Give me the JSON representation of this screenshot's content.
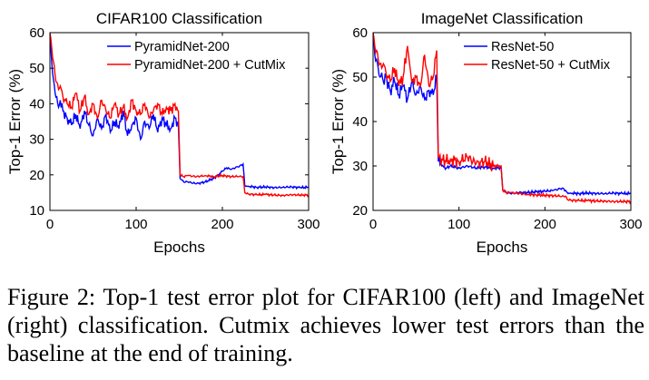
{
  "chart_data": [
    {
      "type": "line",
      "title": "CIFAR100 Classification",
      "xlabel": "Epochs",
      "ylabel": "Top-1 Error (%)",
      "xlim": [
        0,
        300
      ],
      "ylim": [
        10,
        60
      ],
      "xticks": [
        0,
        100,
        200,
        300
      ],
      "yticks": [
        10,
        20,
        30,
        40,
        50,
        60
      ],
      "legend_position": "top-right",
      "series": [
        {
          "name": "PyramidNet-200",
          "color": "#0000ff",
          "x": [
            0,
            2,
            4,
            6,
            8,
            10,
            12,
            15,
            20,
            25,
            30,
            35,
            40,
            45,
            50,
            55,
            60,
            65,
            70,
            75,
            80,
            85,
            90,
            95,
            100,
            105,
            110,
            115,
            120,
            125,
            130,
            135,
            140,
            145,
            149,
            151,
            155,
            160,
            170,
            180,
            190,
            195,
            200,
            205,
            210,
            215,
            220,
            224,
            226,
            230,
            240,
            250,
            260,
            270,
            280,
            290,
            300
          ],
          "y": [
            58,
            52,
            47,
            43,
            42,
            39,
            41,
            38,
            36,
            34,
            37,
            33,
            38,
            34,
            31,
            36,
            33,
            37,
            32,
            35,
            33,
            38,
            31,
            34,
            36,
            30,
            35,
            33,
            37,
            32,
            36,
            34,
            33,
            36,
            34,
            19,
            18,
            18,
            17.5,
            18,
            19,
            20,
            21,
            22,
            21.5,
            22,
            22.5,
            23,
            17,
            16.8,
            16.5,
            16.6,
            16.4,
            16.5,
            16.6,
            16.4,
            16.5
          ]
        },
        {
          "name": "PyramidNet-200 + CutMix",
          "color": "#ff0000",
          "x": [
            0,
            2,
            4,
            6,
            8,
            10,
            12,
            15,
            20,
            25,
            30,
            35,
            40,
            45,
            50,
            55,
            60,
            65,
            70,
            75,
            80,
            85,
            90,
            95,
            100,
            105,
            110,
            115,
            120,
            125,
            130,
            135,
            140,
            145,
            149,
            151,
            155,
            160,
            170,
            180,
            190,
            200,
            210,
            220,
            224,
            226,
            230,
            240,
            250,
            260,
            270,
            280,
            290,
            300
          ],
          "y": [
            60,
            56,
            52,
            48,
            46,
            44,
            45,
            42,
            40,
            39,
            43,
            38,
            42,
            37,
            40,
            36,
            41,
            38,
            36,
            40,
            37,
            39,
            36,
            41,
            38,
            37,
            40,
            36,
            38,
            40,
            37,
            39,
            38,
            40,
            38,
            20,
            19.5,
            19.8,
            19.5,
            19.8,
            19.5,
            19.8,
            19.5,
            19.6,
            19.5,
            15,
            14.6,
            14.4,
            14.5,
            14.3,
            14.2,
            14.4,
            14.3,
            14.3
          ]
        }
      ]
    },
    {
      "type": "line",
      "title": "ImageNet Classification",
      "xlabel": "Epochs",
      "ylabel": "Top-1 Error (%)",
      "xlim": [
        0,
        300
      ],
      "ylim": [
        20,
        60
      ],
      "xticks": [
        0,
        100,
        200,
        300
      ],
      "yticks": [
        20,
        30,
        40,
        50,
        60
      ],
      "legend_position": "top-right",
      "series": [
        {
          "name": "ResNet-50",
          "color": "#0000ff",
          "x": [
            0,
            2,
            4,
            6,
            8,
            10,
            12,
            15,
            20,
            25,
            30,
            35,
            40,
            45,
            50,
            55,
            60,
            65,
            70,
            74,
            76,
            80,
            85,
            90,
            100,
            110,
            120,
            130,
            140,
            149,
            151,
            155,
            160,
            170,
            180,
            190,
            200,
            210,
            220,
            224,
            226,
            230,
            240,
            250,
            260,
            270,
            280,
            290,
            300
          ],
          "y": [
            60,
            55,
            54,
            52,
            50,
            51,
            49,
            50,
            47,
            49,
            46,
            48,
            45,
            49,
            46,
            48,
            45,
            47,
            46,
            50,
            31,
            30,
            29.5,
            30,
            29.5,
            30,
            29.5,
            29.8,
            29.5,
            29.6,
            24.5,
            24,
            23.8,
            24,
            24,
            24.2,
            24.3,
            24.5,
            25,
            24.5,
            24,
            23.9,
            23.8,
            23.9,
            23.8,
            23.8,
            23.9,
            23.8,
            23.8
          ]
        },
        {
          "name": "ResNet-50 + CutMix",
          "color": "#ff0000",
          "x": [
            0,
            2,
            4,
            6,
            8,
            10,
            12,
            15,
            20,
            25,
            30,
            35,
            40,
            45,
            50,
            55,
            60,
            65,
            70,
            74,
            76,
            80,
            85,
            90,
            100,
            110,
            120,
            130,
            140,
            149,
            151,
            155,
            160,
            170,
            180,
            190,
            200,
            210,
            220,
            224,
            226,
            230,
            240,
            250,
            260,
            270,
            280,
            290,
            300
          ],
          "y": [
            60,
            57,
            56,
            54,
            53,
            52,
            53,
            51,
            49,
            52,
            48,
            50,
            57,
            49,
            50,
            48,
            55,
            48,
            50,
            56,
            32,
            31.5,
            31,
            31.5,
            31,
            32,
            30.5,
            31,
            30,
            30,
            24.5,
            24,
            24,
            23.8,
            23.6,
            23.5,
            23.4,
            23.3,
            23.2,
            23.2,
            22.5,
            22.3,
            22.2,
            22.2,
            22.1,
            22.1,
            22,
            22,
            22
          ]
        }
      ]
    }
  ],
  "caption": "Figure 2: Top-1 test error plot for CIFAR100 (left) and ImageNet (right) classification. Cutmix achieves lower test errors than the baseline at the end of training."
}
